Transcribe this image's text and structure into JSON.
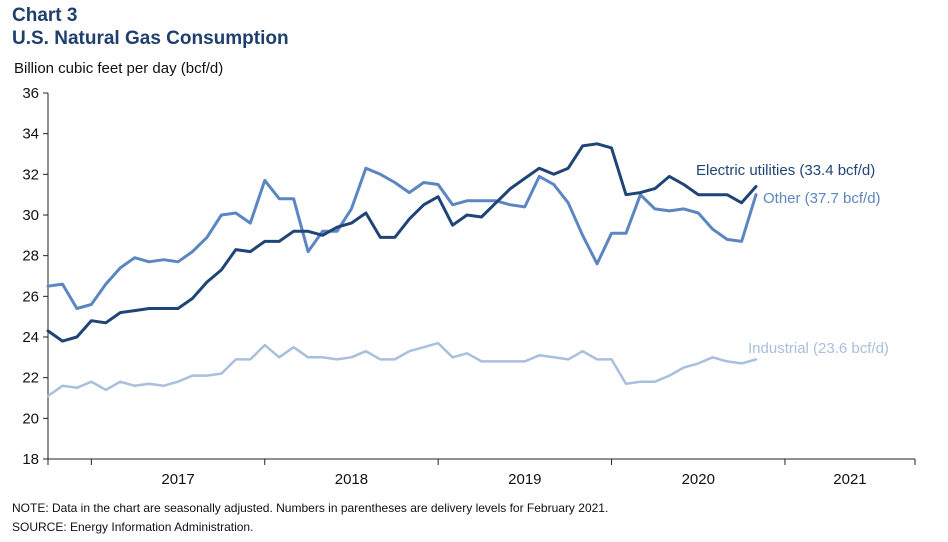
{
  "header": {
    "chart_number": "Chart 3",
    "title": "U.S. Natural Gas Consumption"
  },
  "footer": {
    "note": "NOTE: Data in the chart are seasonally adjusted. Numbers in parentheses are delivery levels for February 2021.",
    "source": "SOURCE: Energy Information  Administration."
  },
  "colors": {
    "electric": "#1f4576",
    "other": "#5b86c2",
    "industrial": "#a9bfdc",
    "title": "#1f3f6e"
  },
  "chart_data": {
    "type": "line",
    "title": "U.S. Natural Gas Consumption",
    "ylabel": "Billion cubic feet per day (bcf/d)",
    "xlabel": "",
    "ylim": [
      18,
      36
    ],
    "yticks": [
      18,
      20,
      22,
      24,
      26,
      28,
      30,
      32,
      34,
      36
    ],
    "x_start": "2016-10",
    "x_end": "2021-10",
    "x_period": "monthly",
    "year_labels": [
      "2017",
      "2018",
      "2019",
      "2020",
      "2021"
    ],
    "series": [
      {
        "name": "Electric utilities",
        "label": "Electric utilities (33.4 bcf/d)",
        "color": "#1f4576",
        "values": [
          24.3,
          23.8,
          24.0,
          24.8,
          24.7,
          25.2,
          25.3,
          25.4,
          25.4,
          25.4,
          25.9,
          26.7,
          27.3,
          28.3,
          28.2,
          28.7,
          28.7,
          29.2,
          29.2,
          29.0,
          29.4,
          29.6,
          30.1,
          28.9,
          28.9,
          29.8,
          30.5,
          30.9,
          29.5,
          30.0,
          29.9,
          30.6,
          31.3,
          31.8,
          32.3,
          32.0,
          32.3,
          33.4,
          33.5,
          33.3,
          31.0,
          31.1,
          31.3,
          31.9,
          31.5,
          31.0,
          31.0,
          31.0,
          30.6,
          31.4
        ]
      },
      {
        "name": "Other",
        "label": "Other (37.7 bcf/d)",
        "color": "#5b86c2",
        "values": [
          26.5,
          26.6,
          25.4,
          25.6,
          26.6,
          27.4,
          27.9,
          27.7,
          27.8,
          27.7,
          28.2,
          28.9,
          30.0,
          30.1,
          29.6,
          31.7,
          30.8,
          30.8,
          28.2,
          29.2,
          29.2,
          30.3,
          32.3,
          32.0,
          31.6,
          31.1,
          31.6,
          31.5,
          30.5,
          30.7,
          30.7,
          30.7,
          30.5,
          30.4,
          31.9,
          31.5,
          30.6,
          29.0,
          27.6,
          29.1,
          29.1,
          31.0,
          30.3,
          30.2,
          30.3,
          30.1,
          29.3,
          28.8,
          28.7,
          31.0
        ]
      },
      {
        "name": "Industrial",
        "label": "Industrial  (23.6 bcf/d)",
        "color": "#a9bfdc",
        "values": [
          21.1,
          21.6,
          21.5,
          21.8,
          21.4,
          21.8,
          21.6,
          21.7,
          21.6,
          21.8,
          22.1,
          22.1,
          22.2,
          22.9,
          22.9,
          23.6,
          23.0,
          23.5,
          23.0,
          23.0,
          22.9,
          23.0,
          23.3,
          22.9,
          22.9,
          23.3,
          23.5,
          23.7,
          23.0,
          23.2,
          22.8,
          22.8,
          22.8,
          22.8,
          23.1,
          23.0,
          22.9,
          23.3,
          22.9,
          22.9,
          21.7,
          21.8,
          21.8,
          22.1,
          22.5,
          22.7,
          23.0,
          22.8,
          22.7,
          22.9
        ]
      }
    ]
  }
}
